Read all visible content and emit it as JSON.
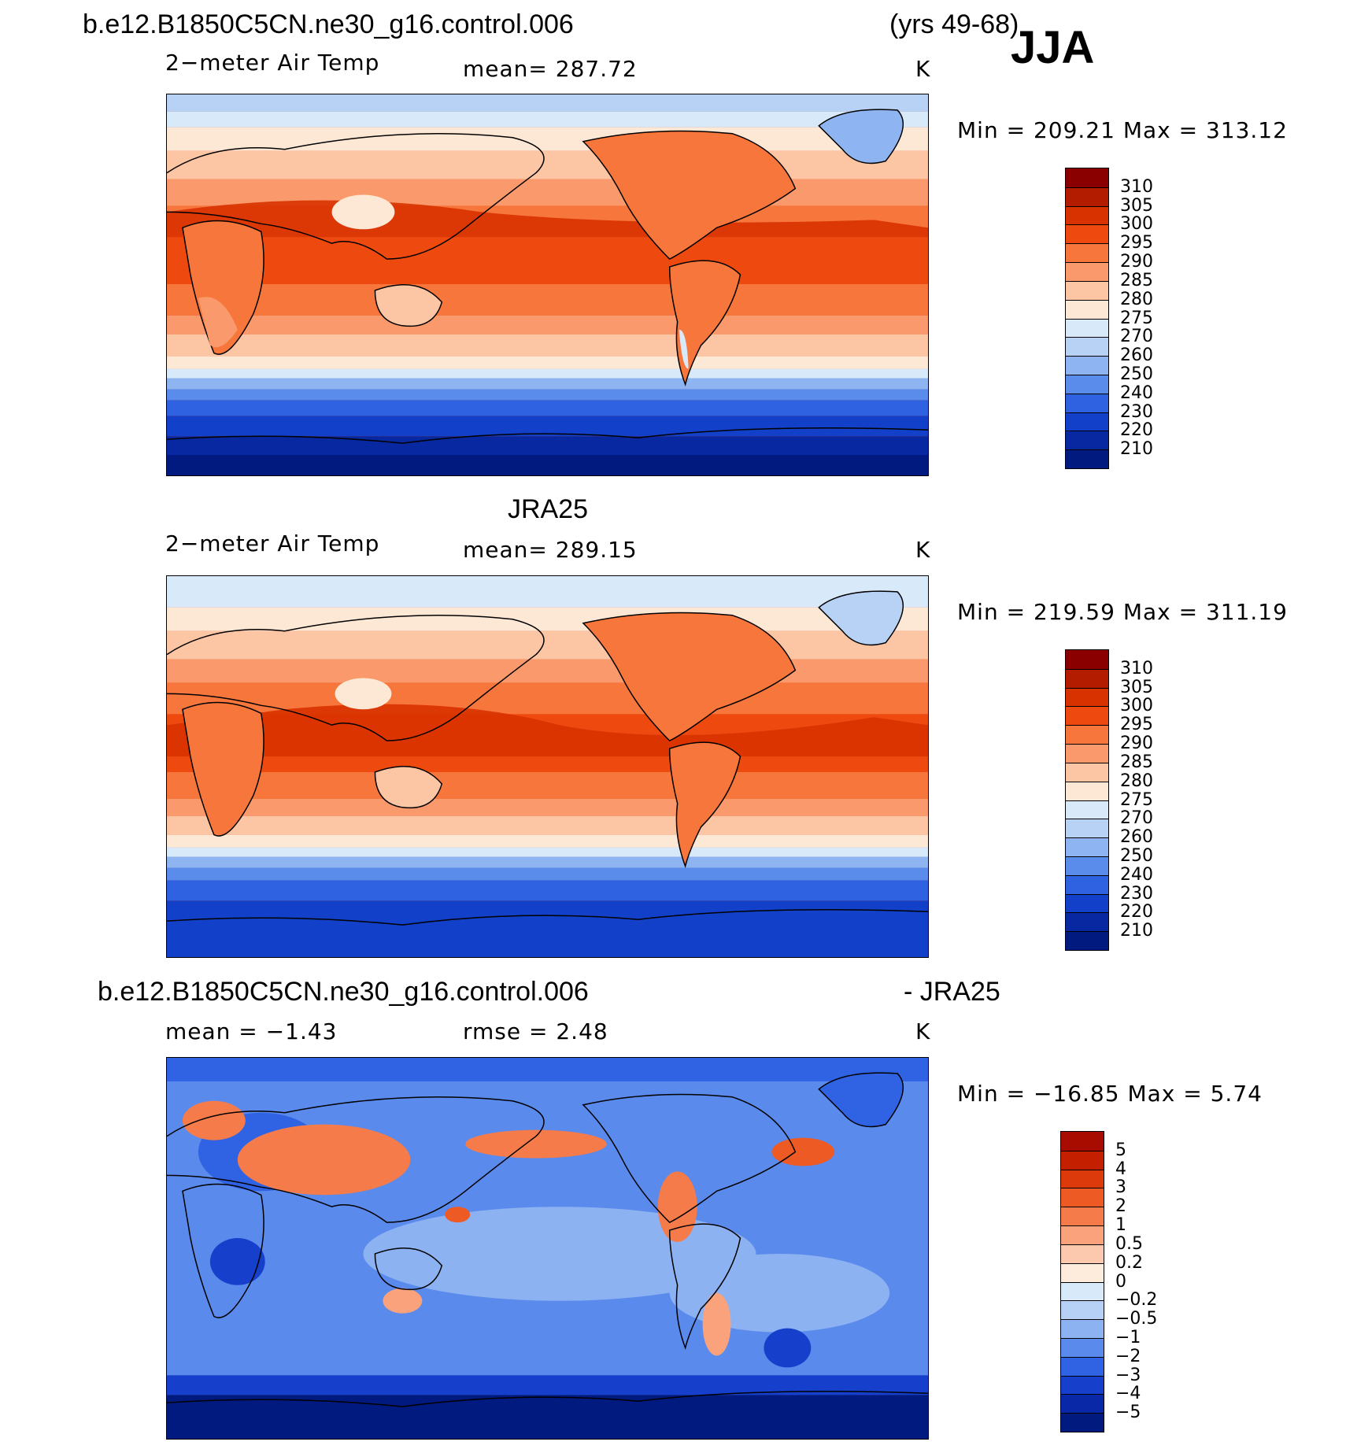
{
  "header": {
    "case_name": "b.e12.B1850C5CN.ne30_g16.control.006",
    "years": "(yrs 49-68)",
    "season": "JJA"
  },
  "panels": [
    {
      "id": "model",
      "title": "",
      "variable": "2−meter Air Temp",
      "stat": "mean=  287.72",
      "units": "K",
      "minmax": "Min  =  209.21  Max  =  313.12",
      "colorbar_labels": [
        "310",
        "305",
        "300",
        "295",
        "290",
        "285",
        "280",
        "275",
        "270",
        "260",
        "250",
        "240",
        "230",
        "220",
        "210"
      ],
      "colors": [
        "#8a0000",
        "#b41c00",
        "#d83200",
        "#ee4a10",
        "#f7763c",
        "#fa9a6c",
        "#fcc5a4",
        "#fde8d6",
        "#d8eafa",
        "#b8d2f6",
        "#8eb4f2",
        "#5a8cec",
        "#2e62e0",
        "#1240c8",
        "#0728a0",
        "#001a80"
      ]
    },
    {
      "id": "obs",
      "title": "JRA25",
      "variable": "2−meter Air Temp",
      "stat": "mean=  289.15",
      "units": "K",
      "minmax": "Min  =  219.59  Max  =  311.19",
      "colorbar_labels": [
        "310",
        "305",
        "300",
        "295",
        "290",
        "285",
        "280",
        "275",
        "270",
        "260",
        "250",
        "240",
        "230",
        "220",
        "210"
      ],
      "colors": [
        "#8a0000",
        "#b41c00",
        "#d83200",
        "#ee4a10",
        "#f7763c",
        "#fa9a6c",
        "#fcc5a4",
        "#fde8d6",
        "#d8eafa",
        "#b8d2f6",
        "#8eb4f2",
        "#5a8cec",
        "#2e62e0",
        "#1240c8",
        "#0728a0",
        "#001a80"
      ]
    },
    {
      "id": "diff",
      "title_left": "b.e12.B1850C5CN.ne30_g16.control.006",
      "title_right": "- JRA25",
      "stat_mean": "mean  =    −1.43",
      "stat_rmse": "rmse  =     2.48",
      "units": "K",
      "minmax": "Min  =  −16.85  Max  =      5.74",
      "colorbar_labels": [
        "5",
        "4",
        "3",
        "2",
        "1",
        "0.5",
        "0.2",
        "0",
        "−0.2",
        "−0.5",
        "−1",
        "−2",
        "−3",
        "−4",
        "−5"
      ],
      "colors": [
        "#a80c00",
        "#c42000",
        "#dc3a0a",
        "#ee5a24",
        "#f57c4a",
        "#f9a27c",
        "#fcc8ae",
        "#fdebdc",
        "#d8eafa",
        "#b6d0f6",
        "#8cb2f2",
        "#5a8aec",
        "#3062e4",
        "#1640cc",
        "#0828a8",
        "#001a80"
      ]
    }
  ]
}
